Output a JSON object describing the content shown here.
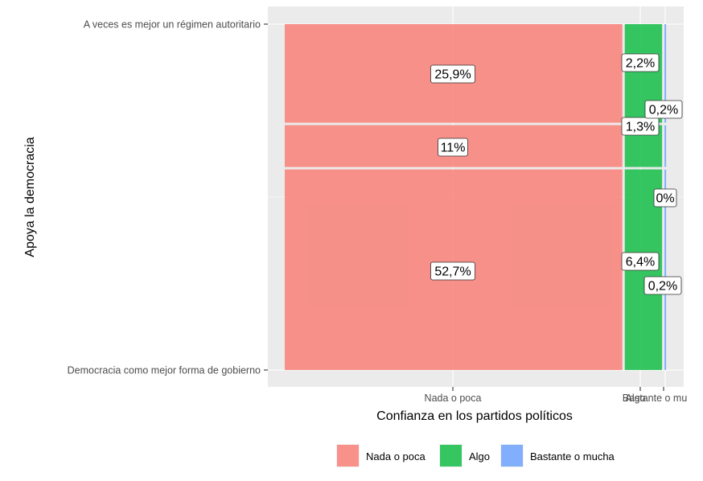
{
  "chart_data": {
    "type": "mosaic",
    "xlabel": "Confianza en los partidos políticos",
    "ylabel": "Apoya la democracia",
    "x_categories": [
      "Nada o poca",
      "Algo",
      "Bastante o mucha"
    ],
    "x_tick_labels": [
      "Nada o poca",
      "Algo",
      "Bastante o mu"
    ],
    "y_categories": [
      "A veces es mejor un régimen autoritario",
      "",
      "Democracia como mejor forma de gobierno"
    ],
    "y_tick_labels": [
      "A veces es mejor un régimen autoritario",
      "Democracia como mejor forma de gobierno"
    ],
    "colors": {
      "Nada o poca": "#f8766d",
      "Algo": "#00ba38",
      "Bastante o mucha": "#619cff"
    },
    "cells": [
      {
        "x": "Nada o poca",
        "y": 0,
        "value": 25.9,
        "label": "25,9%"
      },
      {
        "x": "Nada o poca",
        "y": 1,
        "value": 11.0,
        "label": "11%"
      },
      {
        "x": "Nada o poca",
        "y": 2,
        "value": 52.7,
        "label": "52,7%"
      },
      {
        "x": "Algo",
        "y": 0,
        "value": 2.2,
        "label": "2,2%"
      },
      {
        "x": "Algo",
        "y": 1,
        "value": 1.3,
        "label": "1,3%"
      },
      {
        "x": "Algo",
        "y": 2,
        "value": 6.4,
        "label": "6,4%"
      },
      {
        "x": "Bastante o mucha",
        "y": 0,
        "value": 0.2,
        "label": "0,2%"
      },
      {
        "x": "Bastante o mucha",
        "y": 1,
        "value": 0.0,
        "label": "0%"
      },
      {
        "x": "Bastante o mucha",
        "y": 2,
        "value": 0.2,
        "label": "0,2%"
      }
    ],
    "legend": {
      "position": "bottom",
      "entries": [
        "Nada o poca",
        "Algo",
        "Bastante o mucha"
      ]
    },
    "grid": true
  }
}
